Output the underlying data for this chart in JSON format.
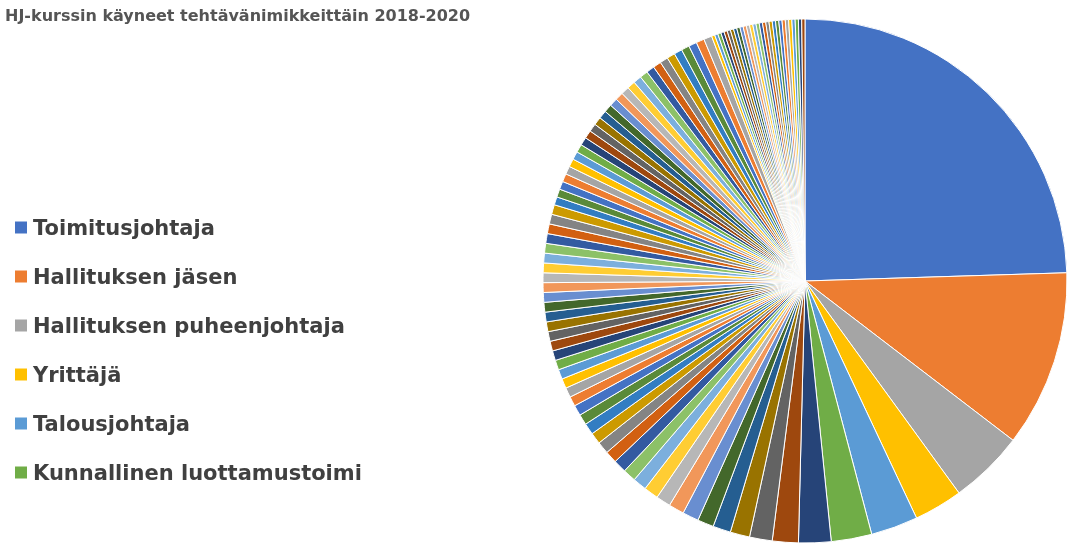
{
  "chart_data": {
    "type": "pie",
    "title": "HJ-kurssin käyneet tehtävänimikkeittäin 2018-2020",
    "categories": [
      "Toimitusjohtaja",
      "Hallituksen jäsen",
      "Hallituksen puheenjohtaja",
      "Yrittäjä",
      "Talousjohtaja",
      "Kunnallinen luottamustoimi",
      null,
      null,
      null,
      null,
      null,
      null,
      null,
      null,
      null,
      null,
      null,
      null,
      null,
      null,
      null,
      null,
      null,
      null,
      null,
      null,
      null,
      null,
      null,
      null,
      null,
      null,
      null,
      null,
      null,
      null,
      null,
      null,
      null,
      null,
      null,
      null,
      null,
      null,
      null,
      null,
      null,
      null,
      null,
      null,
      null,
      null,
      null,
      null,
      null,
      null,
      null,
      null,
      null,
      null,
      null,
      null,
      null,
      null,
      null,
      null,
      null,
      null,
      null,
      null,
      null,
      null,
      null,
      null,
      null,
      null,
      null,
      null,
      null,
      null,
      null,
      null,
      null,
      null,
      null,
      null,
      null,
      null,
      null,
      null,
      null,
      null,
      null,
      null,
      null,
      null,
      null,
      null,
      null,
      null,
      null,
      null,
      null,
      null
    ],
    "values": [
      24.5,
      10.9,
      4.6,
      3.0,
      2.9,
      2.5,
      2.0,
      1.6,
      1.4,
      1.2,
      1.1,
      1.0,
      1.0,
      0.95,
      0.9,
      0.9,
      0.85,
      0.8,
      0.8,
      0.75,
      0.75,
      0.7,
      0.7,
      0.65,
      0.65,
      0.6,
      0.6,
      0.6,
      0.6,
      0.6,
      0.6,
      0.6,
      0.6,
      0.6,
      0.6,
      0.6,
      0.6,
      0.6,
      0.6,
      0.6,
      0.6,
      0.6,
      0.6,
      0.6,
      0.6,
      0.6,
      0.5,
      0.5,
      0.5,
      0.5,
      0.5,
      0.5,
      0.5,
      0.5,
      0.5,
      0.5,
      0.5,
      0.5,
      0.5,
      0.5,
      0.5,
      0.5,
      0.5,
      0.5,
      0.5,
      0.5,
      0.5,
      0.5,
      0.5,
      0.5,
      0.5,
      0.5,
      0.5,
      0.5,
      0.5,
      0.2,
      0.2,
      0.2,
      0.2,
      0.2,
      0.2,
      0.2,
      0.2,
      0.2,
      0.2,
      0.2,
      0.2,
      0.2,
      0.2,
      0.2,
      0.2,
      0.2,
      0.2,
      0.2,
      0.2,
      0.2,
      0.2,
      0.2,
      0.2,
      0.2,
      0.2,
      0.2,
      0.2,
      0.2
    ],
    "colors": [
      "#4472c4",
      "#ed7d31",
      "#a5a5a5",
      "#ffc000",
      "#5b9bd5",
      "#70ad47",
      "#264478",
      "#9e480e",
      "#636363",
      "#997300",
      "#255e91",
      "#43682b",
      "#698ed0",
      "#f1975a",
      "#b7b7b7",
      "#ffcd33",
      "#7cafdd",
      "#8cc168",
      "#335aa1",
      "#d26012",
      "#848484",
      "#cc9a00",
      "#327dc2",
      "#5a8a39",
      "#4472c4",
      "#ed7d31",
      "#a5a5a5",
      "#ffc000",
      "#5b9bd5",
      "#70ad47",
      "#264478",
      "#9e480e",
      "#636363",
      "#997300",
      "#255e91",
      "#43682b",
      "#698ed0",
      "#f1975a",
      "#b7b7b7",
      "#ffcd33",
      "#7cafdd",
      "#8cc168",
      "#335aa1",
      "#d26012",
      "#848484",
      "#cc9a00",
      "#327dc2",
      "#5a8a39",
      "#4472c4",
      "#ed7d31",
      "#a5a5a5",
      "#ffc000",
      "#5b9bd5",
      "#70ad47",
      "#264478",
      "#9e480e",
      "#636363",
      "#997300",
      "#255e91",
      "#43682b",
      "#698ed0",
      "#f1975a",
      "#b7b7b7",
      "#ffcd33",
      "#7cafdd",
      "#8cc168",
      "#335aa1",
      "#d26012",
      "#848484",
      "#cc9a00",
      "#327dc2",
      "#5a8a39",
      "#4472c4",
      "#ed7d31",
      "#a5a5a5",
      "#ffc000",
      "#5b9bd5",
      "#70ad47",
      "#264478",
      "#9e480e",
      "#636363",
      "#997300",
      "#255e91",
      "#43682b",
      "#698ed0",
      "#f1975a",
      "#b7b7b7",
      "#ffcd33",
      "#7cafdd",
      "#8cc168",
      "#335aa1",
      "#d26012",
      "#848484",
      "#cc9a00",
      "#327dc2",
      "#5a8a39",
      "#4472c4",
      "#ed7d31",
      "#a5a5a5",
      "#ffc000",
      "#5b9bd5",
      "#70ad47",
      "#264478",
      "#9e480e"
    ],
    "legend": "left"
  }
}
